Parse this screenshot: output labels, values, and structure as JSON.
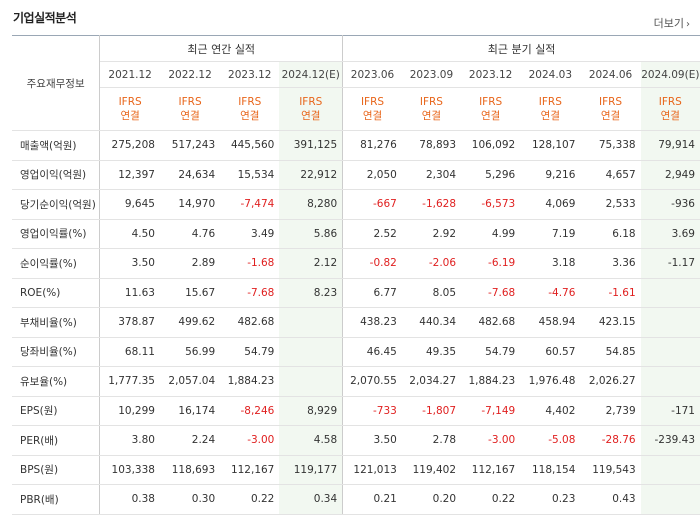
{
  "title": "기업실적분석",
  "more_label": "더보기",
  "header": {
    "row_label": "주요재무정보",
    "group_annual": "최근 연간 실적",
    "group_quarterly": "최근 분기 실적",
    "periods": [
      "2021.12",
      "2022.12",
      "2023.12",
      "2024.12(E)",
      "2023.06",
      "2023.09",
      "2023.12",
      "2024.03",
      "2024.06",
      "2024.09(E)"
    ],
    "ifrs_top": "IFRS",
    "ifrs_bottom": "연결"
  },
  "rows": [
    {
      "label": "매출액(억원)",
      "values": [
        "275,208",
        "517,243",
        "445,560",
        "391,125",
        "81,276",
        "78,893",
        "106,092",
        "128,107",
        "75,338",
        "79,914"
      ]
    },
    {
      "label": "영업이익(억원)",
      "values": [
        "12,397",
        "24,634",
        "15,534",
        "22,912",
        "2,050",
        "2,304",
        "5,296",
        "9,216",
        "4,657",
        "2,949"
      ]
    },
    {
      "label": "당기순이익(억원)",
      "values": [
        "9,645",
        "14,970",
        "-7,474",
        "8,280",
        "-667",
        "-1,628",
        "-6,573",
        "4,069",
        "2,533",
        "-936"
      ]
    },
    {
      "label": "영업이익률(%)",
      "values": [
        "4.50",
        "4.76",
        "3.49",
        "5.86",
        "2.52",
        "2.92",
        "4.99",
        "7.19",
        "6.18",
        "3.69"
      ]
    },
    {
      "label": "순이익률(%)",
      "values": [
        "3.50",
        "2.89",
        "-1.68",
        "2.12",
        "-0.82",
        "-2.06",
        "-6.19",
        "3.18",
        "3.36",
        "-1.17"
      ]
    },
    {
      "label": "ROE(%)",
      "values": [
        "11.63",
        "15.67",
        "-7.68",
        "8.23",
        "6.77",
        "8.05",
        "-7.68",
        "-4.76",
        "-1.61",
        ""
      ]
    },
    {
      "label": "부채비율(%)",
      "values": [
        "378.87",
        "499.62",
        "482.68",
        "",
        "438.23",
        "440.34",
        "482.68",
        "458.94",
        "423.15",
        ""
      ]
    },
    {
      "label": "당좌비율(%)",
      "values": [
        "68.11",
        "56.99",
        "54.79",
        "",
        "46.45",
        "49.35",
        "54.79",
        "60.57",
        "54.85",
        ""
      ]
    },
    {
      "label": "유보율(%)",
      "values": [
        "1,777.35",
        "2,057.04",
        "1,884.23",
        "",
        "2,070.55",
        "2,034.27",
        "1,884.23",
        "1,976.48",
        "2,026.27",
        ""
      ]
    },
    {
      "label": "EPS(원)",
      "values": [
        "10,299",
        "16,174",
        "-8,246",
        "8,929",
        "-733",
        "-1,807",
        "-7,149",
        "4,402",
        "2,739",
        "-171"
      ]
    },
    {
      "label": "PER(배)",
      "values": [
        "3.80",
        "2.24",
        "-3.00",
        "4.58",
        "3.50",
        "2.78",
        "-3.00",
        "-5.08",
        "-28.76",
        "-239.43"
      ]
    },
    {
      "label": "BPS(원)",
      "values": [
        "103,338",
        "118,693",
        "112,167",
        "119,177",
        "121,013",
        "119,402",
        "112,167",
        "118,154",
        "119,543",
        ""
      ]
    },
    {
      "label": "PBR(배)",
      "values": [
        "0.38",
        "0.30",
        "0.22",
        "0.34",
        "0.21",
        "0.20",
        "0.22",
        "0.23",
        "0.43",
        ""
      ]
    }
  ]
}
